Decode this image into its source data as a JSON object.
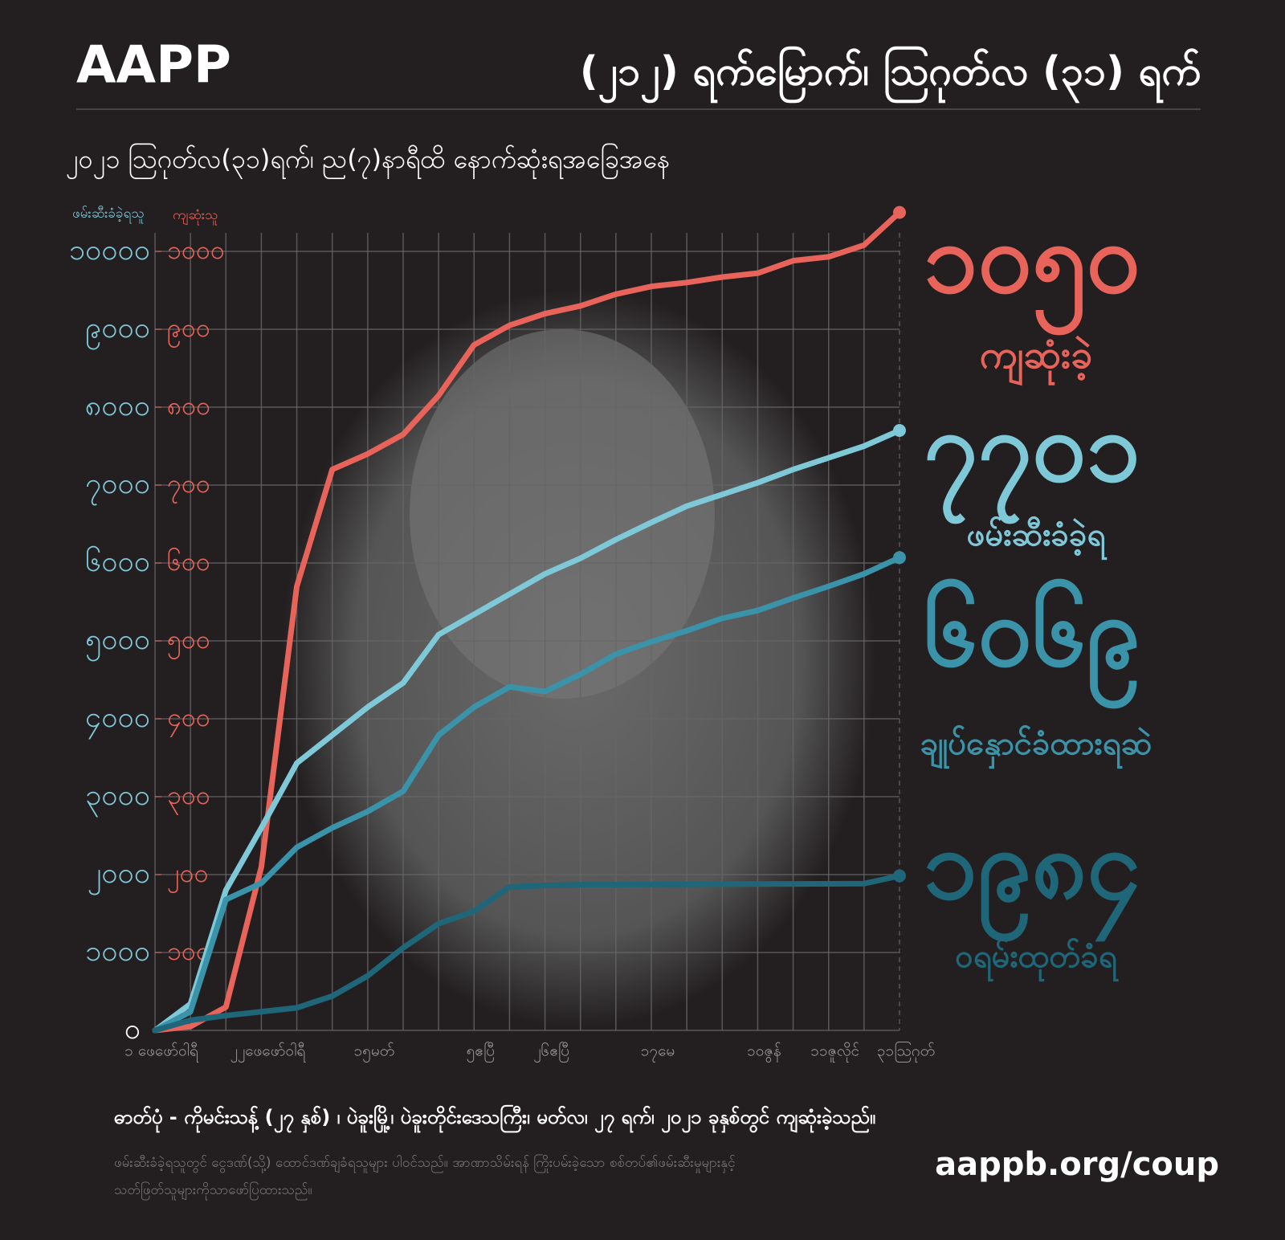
{
  "header": {
    "brand": "AAPP",
    "title": "(၂၁၂) ရက်မြောက်၊ ဩဂုတ်လ (၃၁) ရက်"
  },
  "chart_data": {
    "type": "line",
    "subtitle": "၂၀၂၁ ဩဂုတ်လ(၃၁)ရက်၊ ည(၇)နာရီထိ နောက်ဆုံးရအခြေအနေ",
    "ylabel": "ဖမ်းဆီးခံခဲ့ရသူ",
    "y2label": "ကျဆုံးသူ",
    "categories": [
      "၁ ဖေဖော်ဝါရီ",
      null,
      null,
      "၂၂ဖေဖော်ဝါရီ",
      null,
      null,
      "၁၅မတ်",
      null,
      null,
      "၅ဧပြီ",
      null,
      "၂၆ဧပြီ",
      null,
      null,
      "၁၇မေ",
      null,
      null,
      "၁၀ဇွန်",
      null,
      "၁၁ဇူလိုင်",
      null,
      "၃၁ဩဂုတ်"
    ],
    "ylim": [
      0,
      10000
    ],
    "yticks": [
      {
        "value": 0,
        "label": "၀"
      },
      {
        "value": 1000,
        "label": "၁၀၀၀"
      },
      {
        "value": 2000,
        "label": "၂၀၀၀"
      },
      {
        "value": 3000,
        "label": "၃၀၀၀"
      },
      {
        "value": 4000,
        "label": "၄၀၀၀"
      },
      {
        "value": 5000,
        "label": "၅၀၀၀"
      },
      {
        "value": 6000,
        "label": "၆၀၀၀"
      },
      {
        "value": 7000,
        "label": "၇၀၀၀"
      },
      {
        "value": 8000,
        "label": "၈၀၀၀"
      },
      {
        "value": 9000,
        "label": "၉၀၀၀"
      },
      {
        "value": 10000,
        "label": "၁၀၀၀၀"
      }
    ],
    "y2lim": [
      0,
      1000
    ],
    "y2ticks": [
      {
        "value": 100,
        "label": "၁၀၀"
      },
      {
        "value": 200,
        "label": "၂၀၀"
      },
      {
        "value": 300,
        "label": "၃၀၀"
      },
      {
        "value": 400,
        "label": "၄၀၀"
      },
      {
        "value": 500,
        "label": "၅၀၀"
      },
      {
        "value": 600,
        "label": "၆၀၀"
      },
      {
        "value": 700,
        "label": "၇၀၀"
      },
      {
        "value": 800,
        "label": "၈၀၀"
      },
      {
        "value": 900,
        "label": "၉၀၀"
      },
      {
        "value": 1000,
        "label": "၁၀၀၀"
      }
    ],
    "grid": true,
    "series": [
      {
        "name": "ကျဆုံးခဲ့",
        "color": "#e8645a",
        "axis": "y2",
        "values": [
          0,
          5,
          30,
          210,
          570,
          720,
          740,
          765,
          815,
          880,
          905,
          920,
          930,
          945,
          955,
          960,
          967,
          972,
          988,
          993,
          1008,
          1050
        ],
        "value_labels": [
          null,
          null,
          null,
          null,
          null,
          null,
          null,
          null,
          null,
          null,
          null,
          null,
          null,
          null,
          null,
          null,
          null,
          null,
          null,
          null,
          null,
          "၁၀၅၀"
        ]
      },
      {
        "name": "ဖမ်းဆီးခံခဲ့ရ",
        "color": "#7fc8d8",
        "values": [
          0,
          340,
          1800,
          2600,
          3430,
          3790,
          4150,
          4460,
          5080,
          5340,
          5600,
          5860,
          6060,
          6300,
          6520,
          6730,
          6880,
          7030,
          7200,
          7350,
          7500,
          7701
        ],
        "value_labels": [
          null,
          null,
          null,
          null,
          null,
          null,
          null,
          null,
          null,
          null,
          null,
          null,
          null,
          null,
          null,
          null,
          null,
          null,
          null,
          null,
          null,
          "၇၇၀၁"
        ]
      },
      {
        "name": "ချုပ်နှောင်ခံထားရဆဲ",
        "color": "#3a93a8",
        "values": [
          0,
          240,
          1680,
          1890,
          2350,
          2600,
          2810,
          3070,
          3790,
          4150,
          4410,
          4350,
          4570,
          4830,
          4990,
          5130,
          5290,
          5390,
          5550,
          5700,
          5860,
          6069
        ],
        "value_labels": [
          null,
          null,
          null,
          null,
          null,
          null,
          null,
          null,
          null,
          null,
          null,
          null,
          null,
          null,
          null,
          null,
          null,
          null,
          null,
          null,
          null,
          "၆၀၆၉"
        ]
      },
      {
        "name": "ဝရမ်းထုတ်ခံရ",
        "color": "#1e6678",
        "values": [
          0,
          130,
          190,
          240,
          290,
          440,
          700,
          1060,
          1370,
          1530,
          1840,
          1860,
          1870,
          1870,
          1875,
          1875,
          1878,
          1880,
          1880,
          1882,
          1884,
          1984
        ],
        "value_labels": [
          null,
          null,
          null,
          null,
          null,
          null,
          null,
          null,
          null,
          null,
          null,
          null,
          null,
          null,
          null,
          null,
          null,
          null,
          null,
          null,
          null,
          "၁၉၈၄"
        ]
      }
    ]
  },
  "caption": "ဓာတ်ပုံ - ကိုမင်းသန့် (၂၇ နှစ်) ၊ ပဲခူးမြို့၊ ပဲခူးတိုင်းဒေသကြီး၊ မတ်လ၊ ၂၇ ရက်၊ ၂၀၂၁ ခုနှစ်တွင် ကျဆုံးခဲ့သည်။",
  "footnote": [
    "ဖမ်းဆီးခံခဲ့ရသူတွင် ငွေဒဏ်(သို့) ထောင်ဒဏ်ချခံရသူများ ပါဝင်သည်။ အာဏာသိမ်းရန် ကြိုးပမ်းခဲ့သော စစ်တပ်၏ဖမ်းဆီးမှုများနှင့်",
    "သတ်ဖြတ်သူများကိုသာဖော်ပြထားသည်။"
  ],
  "url": "aappb.org/coup"
}
